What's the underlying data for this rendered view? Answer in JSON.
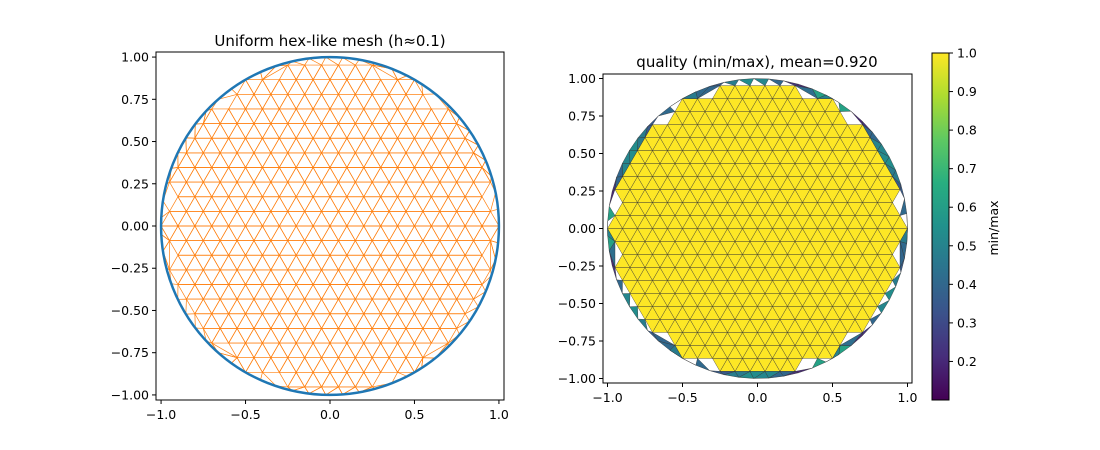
{
  "chart_data": [
    {
      "type": "mesh",
      "title": "Uniform hex-like mesh (h≈0.1)",
      "xlim": [
        -1.03,
        1.03
      ],
      "ylim": [
        -1.03,
        1.03
      ],
      "xticks": [
        -1.0,
        -0.5,
        0.0,
        0.5,
        1.0
      ],
      "xtick_labels": [
        "−1.0",
        "−0.5",
        "0.0",
        "0.5",
        "1.0"
      ],
      "yticks": [
        -1.0,
        -0.75,
        -0.5,
        -0.25,
        0.0,
        0.25,
        0.5,
        0.75,
        1.0
      ],
      "ytick_labels": [
        "−1.00",
        "−0.75",
        "−0.50",
        "−0.25",
        "0.00",
        "0.25",
        "0.50",
        "0.75",
        "1.00"
      ],
      "domain_circle": {
        "center": [
          0,
          0
        ],
        "radius": 1.0
      },
      "mesh_spacing_h": 0.1,
      "colors": {
        "mesh": "#ff7f0e",
        "circle": "#1f77b4"
      }
    },
    {
      "type": "tripcolor",
      "title": "quality (min/max), mean=0.920",
      "xlim": [
        -1.03,
        1.03
      ],
      "ylim": [
        -1.03,
        1.03
      ],
      "xticks": [
        -1.0,
        -0.5,
        0.0,
        0.5,
        1.0
      ],
      "xtick_labels": [
        "−1.0",
        "−0.5",
        "0.0",
        "0.5",
        "1.0"
      ],
      "yticks": [
        -1.0,
        -0.75,
        -0.5,
        -0.25,
        0.0,
        0.25,
        0.5,
        0.75,
        1.0
      ],
      "ytick_labels": [
        "−1.00",
        "−0.75",
        "−0.50",
        "−0.25",
        "0.00",
        "0.25",
        "0.50",
        "0.75",
        "1.00"
      ],
      "mean_quality": 0.92,
      "interior_quality": 1.0,
      "colorbar": {
        "label": "min/max",
        "range": [
          0.1,
          1.0
        ],
        "ticks": [
          0.2,
          0.3,
          0.4,
          0.5,
          0.6,
          0.7,
          0.8,
          0.9,
          1.0
        ],
        "tick_labels": [
          "0.2",
          "0.3",
          "0.4",
          "0.5",
          "0.6",
          "0.7",
          "0.8",
          "0.9",
          "1.0"
        ],
        "colormap": "viridis"
      },
      "colors": {
        "edges": "#333333"
      }
    }
  ]
}
